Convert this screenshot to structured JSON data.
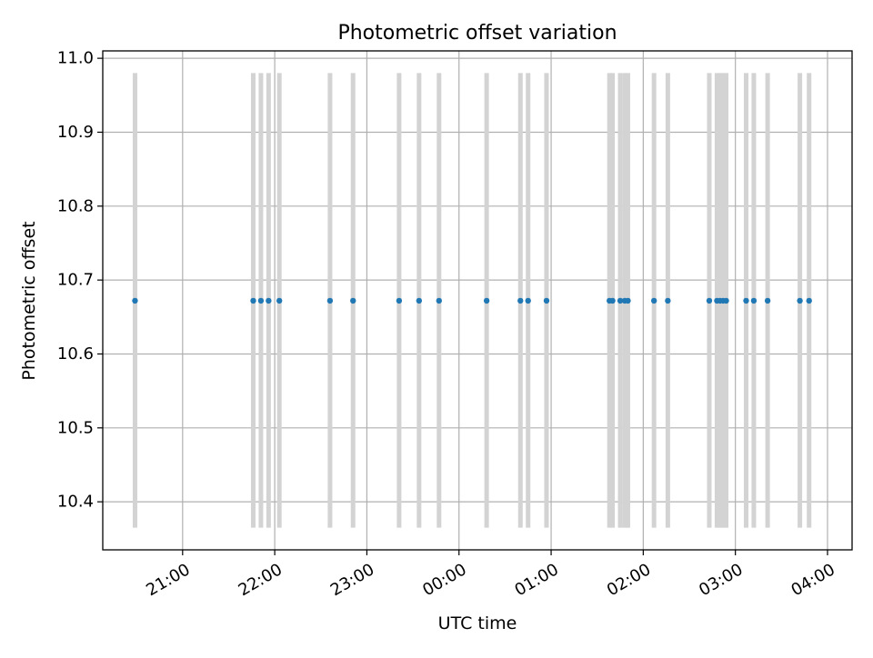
{
  "chart_data": {
    "type": "scatter",
    "title": "Photometric offset variation",
    "xlabel": "UTC time",
    "ylabel": "Photometric offset",
    "x_is_time": true,
    "xlim": [
      "20:08",
      "04:16"
    ],
    "ylim": [
      10.335,
      11.01
    ],
    "x_ticks": [
      "21:00",
      "22:00",
      "23:00",
      "00:00",
      "01:00",
      "02:00",
      "03:00",
      "04:00"
    ],
    "y_ticks": [
      "10.4",
      "10.5",
      "10.6",
      "10.7",
      "10.8",
      "10.9",
      "11.0"
    ],
    "grid": true,
    "colors": {
      "points": "#1f77b4",
      "bands": "#d3d3d3",
      "grid": "#b0b0b0"
    },
    "bands": {
      "ymin": 10.365,
      "ymax": 10.98,
      "x": [
        "20:29",
        "21:46",
        "21:51",
        "21:56",
        "22:03",
        "22:36",
        "22:51",
        "23:21",
        "23:34",
        "23:47",
        "00:18",
        "00:40",
        "00:45",
        "00:57",
        "01:38",
        "01:40",
        "01:45",
        "01:48",
        "01:50",
        "02:07",
        "02:16",
        "02:43",
        "02:48",
        "02:50",
        "02:52",
        "02:54",
        "03:07",
        "03:12",
        "03:21",
        "03:42",
        "03:48"
      ]
    },
    "series": [
      {
        "x": [
          "20:29",
          "21:46",
          "21:51",
          "21:56",
          "22:03",
          "22:36",
          "22:51",
          "23:21",
          "23:34",
          "23:47",
          "00:18",
          "00:40",
          "00:45",
          "00:57",
          "01:38",
          "01:40",
          "01:45",
          "01:48",
          "01:50",
          "02:07",
          "02:16",
          "02:43",
          "02:48",
          "02:50",
          "02:52",
          "02:54",
          "03:07",
          "03:12",
          "03:21",
          "03:42",
          "03:48"
        ],
        "y": [
          10.672,
          10.672,
          10.672,
          10.672,
          10.672,
          10.672,
          10.672,
          10.672,
          10.672,
          10.672,
          10.672,
          10.672,
          10.672,
          10.672,
          10.672,
          10.672,
          10.672,
          10.672,
          10.672,
          10.672,
          10.672,
          10.672,
          10.672,
          10.672,
          10.672,
          10.672,
          10.672,
          10.672,
          10.672,
          10.672,
          10.672
        ]
      }
    ]
  }
}
